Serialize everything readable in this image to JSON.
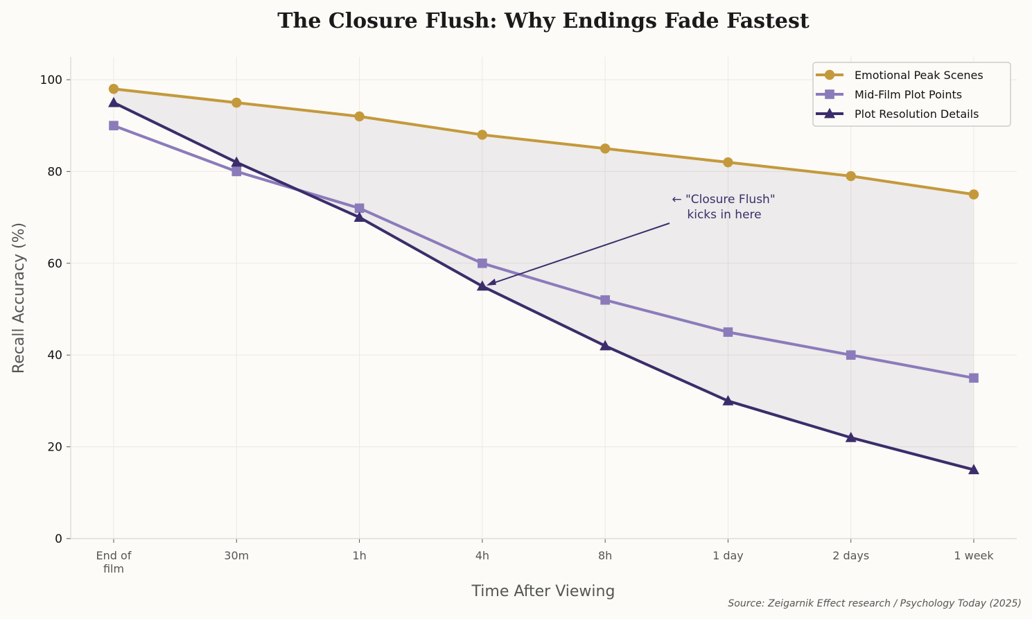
{
  "chart_data": {
    "type": "line",
    "title": "The Closure Flush: Why Endings Fade Fastest",
    "xlabel": "Time After Viewing",
    "ylabel": "Recall Accuracy (%)",
    "categories": [
      "End of\nfilm",
      "30m",
      "1h",
      "4h",
      "8h",
      "1 day",
      "2 days",
      "1 week"
    ],
    "ylim": [
      0,
      105
    ],
    "yticks": [
      0,
      20,
      40,
      60,
      80,
      100
    ],
    "grid": true,
    "legend_placement": "top-right",
    "series": [
      {
        "name": "Emotional Peak Scenes",
        "values": [
          98,
          95,
          92,
          88,
          85,
          82,
          79,
          75
        ],
        "color": "#c4993c",
        "marker": "circle"
      },
      {
        "name": "Mid-Film Plot Points",
        "values": [
          90,
          80,
          72,
          60,
          52,
          45,
          40,
          35
        ],
        "color": "#8b7bbb",
        "marker": "square"
      },
      {
        "name": "Plot Resolution Details",
        "values": [
          95,
          82,
          70,
          55,
          42,
          30,
          22,
          15
        ],
        "color": "#3b2d6b",
        "marker": "triangle"
      }
    ],
    "fill_between": {
      "series": [
        "Emotional Peak Scenes",
        "Plot Resolution Details"
      ],
      "color": "#3b2d6b"
    },
    "annotation": {
      "text_line1": "← \"Closure Flush\"",
      "text_line2": "kicks in here",
      "target_category": "4h",
      "target_value": 55
    },
    "source": "Source: Zeigarnik Effect research / Psychology Today (2025)"
  }
}
